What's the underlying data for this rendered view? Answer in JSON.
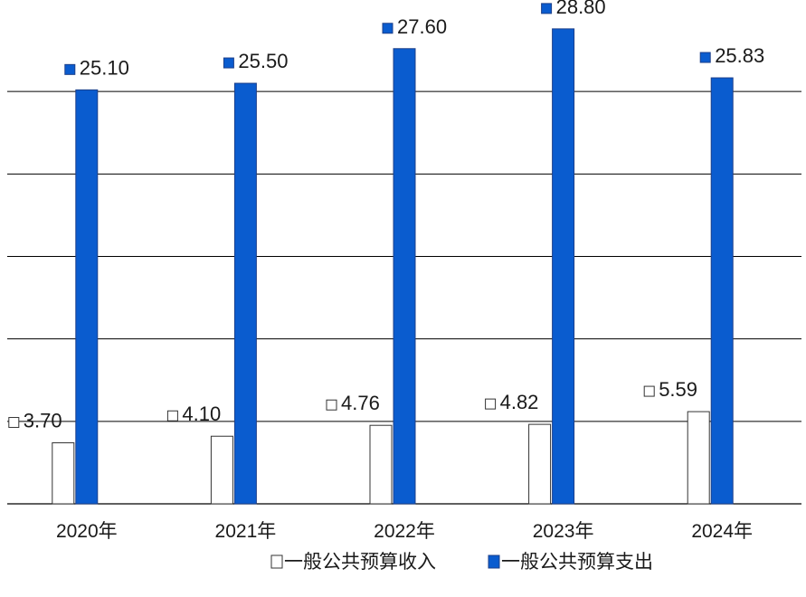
{
  "chart_data": {
    "type": "bar",
    "categories": [
      "2020年",
      "2021年",
      "2022年",
      "2023年",
      "2024年"
    ],
    "series": [
      {
        "name": "一般公共预算收入",
        "values": [
          3.7,
          4.1,
          4.76,
          4.82,
          5.59
        ],
        "labels": [
          "3.70",
          "4.10",
          "4.76",
          "4.82",
          "5.59"
        ],
        "color": "#ffffff",
        "stroke": "#333333"
      },
      {
        "name": "一般公共预算支出",
        "values": [
          25.1,
          25.5,
          27.6,
          28.8,
          25.83
        ],
        "labels": [
          "25.10",
          "25.50",
          "27.60",
          "28.80",
          "25.83"
        ],
        "color": "#0a5ccf",
        "stroke": "#1c3f8a"
      }
    ],
    "ylim": [
      0,
      30
    ],
    "gridlines": [
      0,
      5,
      10,
      15,
      20,
      25
    ],
    "grid": true,
    "legend_position": "bottom-center",
    "title": "",
    "xlabel": "",
    "ylabel": ""
  }
}
